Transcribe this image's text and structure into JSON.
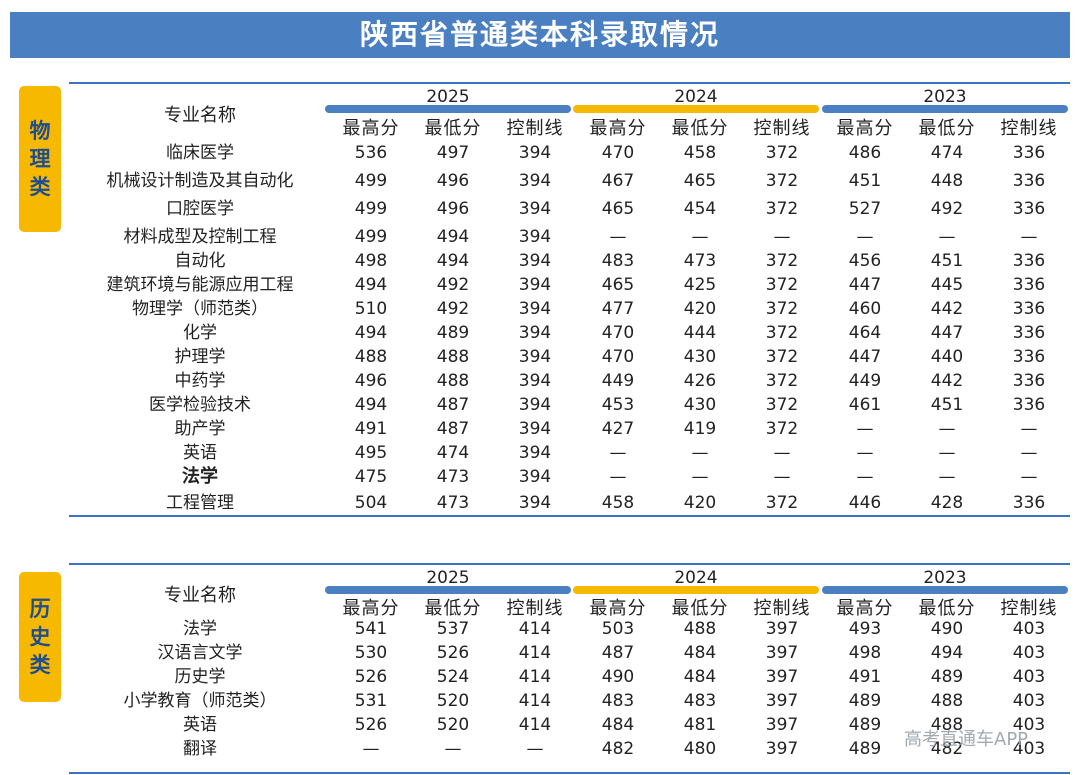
{
  "title": "陕西省普通类本科录取情况",
  "colors": {
    "banner": "#4a7fc1",
    "accent_gold": "#f7b800",
    "line": "#3b74c4"
  },
  "sections": [
    {
      "side_label": [
        "物",
        "理",
        "类"
      ],
      "name_header": "专业名称",
      "years": [
        "2025",
        "2024",
        "2023"
      ],
      "columns": [
        "最高分",
        "最低分",
        "控制线",
        "最高分",
        "最低分",
        "控制线",
        "最高分",
        "最低分",
        "控制线"
      ],
      "rows": [
        {
          "name": "临床医学",
          "values": [
            "536",
            "497",
            "394",
            "470",
            "458",
            "372",
            "486",
            "474",
            "336"
          ]
        },
        {
          "name": "机械设计制造及其自动化",
          "values": [
            "499",
            "496",
            "394",
            "467",
            "465",
            "372",
            "451",
            "448",
            "336"
          ]
        },
        {
          "name": "口腔医学",
          "values": [
            "499",
            "496",
            "394",
            "465",
            "454",
            "372",
            "527",
            "492",
            "336"
          ]
        },
        {
          "name": "材料成型及控制工程",
          "values": [
            "499",
            "494",
            "394",
            "—",
            "—",
            "—",
            "—",
            "—",
            "—"
          ]
        },
        {
          "name": "自动化",
          "values": [
            "498",
            "494",
            "394",
            "483",
            "473",
            "372",
            "456",
            "451",
            "336"
          ]
        },
        {
          "name": "建筑环境与能源应用工程",
          "values": [
            "494",
            "492",
            "394",
            "465",
            "425",
            "372",
            "447",
            "445",
            "336"
          ]
        },
        {
          "name": "物理学（师范类）",
          "values": [
            "510",
            "492",
            "394",
            "477",
            "420",
            "372",
            "460",
            "442",
            "336"
          ]
        },
        {
          "name": "化学",
          "values": [
            "494",
            "489",
            "394",
            "470",
            "444",
            "372",
            "464",
            "447",
            "336"
          ]
        },
        {
          "name": "护理学",
          "values": [
            "488",
            "488",
            "394",
            "470",
            "430",
            "372",
            "447",
            "440",
            "336"
          ]
        },
        {
          "name": "中药学",
          "values": [
            "496",
            "488",
            "394",
            "449",
            "426",
            "372",
            "449",
            "442",
            "336"
          ]
        },
        {
          "name": "医学检验技术",
          "values": [
            "494",
            "487",
            "394",
            "453",
            "430",
            "372",
            "461",
            "451",
            "336"
          ]
        },
        {
          "name": "助产学",
          "values": [
            "491",
            "487",
            "394",
            "427",
            "419",
            "372",
            "—",
            "—",
            "—"
          ]
        },
        {
          "name": "英语",
          "values": [
            "495",
            "474",
            "394",
            "—",
            "—",
            "—",
            "—",
            "—",
            "—"
          ]
        },
        {
          "name": "法学",
          "values": [
            "475",
            "473",
            "394",
            "—",
            "—",
            "—",
            "—",
            "—",
            "—"
          ]
        },
        {
          "name": "工程管理",
          "values": [
            "504",
            "473",
            "394",
            "458",
            "420",
            "372",
            "446",
            "428",
            "336"
          ]
        }
      ]
    },
    {
      "side_label": [
        "历",
        "史",
        "类"
      ],
      "name_header": "专业名称",
      "years": [
        "2025",
        "2024",
        "2023"
      ],
      "columns": [
        "最高分",
        "最低分",
        "控制线",
        "最高分",
        "最低分",
        "控制线",
        "最高分",
        "最低分",
        "控制线"
      ],
      "rows": [
        {
          "name": "法学",
          "values": [
            "541",
            "537",
            "414",
            "503",
            "488",
            "397",
            "493",
            "490",
            "403"
          ]
        },
        {
          "name": "汉语言文学",
          "values": [
            "530",
            "526",
            "414",
            "487",
            "484",
            "397",
            "498",
            "494",
            "403"
          ]
        },
        {
          "name": "历史学",
          "values": [
            "526",
            "524",
            "414",
            "490",
            "484",
            "397",
            "491",
            "489",
            "403"
          ]
        },
        {
          "name": "小学教育（师范类）",
          "values": [
            "531",
            "520",
            "414",
            "483",
            "483",
            "397",
            "489",
            "488",
            "403"
          ]
        },
        {
          "name": "英语",
          "values": [
            "526",
            "520",
            "414",
            "484",
            "481",
            "397",
            "489",
            "488",
            "403"
          ]
        },
        {
          "name": "翻译",
          "values": [
            "—",
            "—",
            "—",
            "482",
            "480",
            "397",
            "489",
            "482",
            "403"
          ]
        }
      ]
    }
  ],
  "watermark": "高考直通车APP"
}
